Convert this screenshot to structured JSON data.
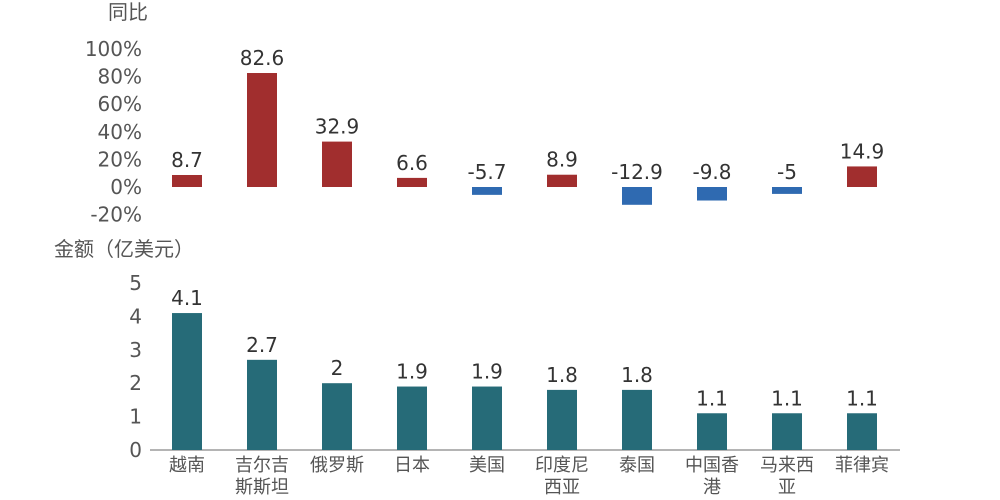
{
  "chart_data": {
    "type": "bar",
    "categories": [
      [
        "越南"
      ],
      [
        "吉尔吉",
        "斯斯坦"
      ],
      [
        "俄罗斯"
      ],
      [
        "日本"
      ],
      [
        "美国"
      ],
      [
        "印度尼",
        "西亚"
      ],
      [
        "泰国"
      ],
      [
        "中国香",
        "港"
      ],
      [
        "马来西",
        "亚"
      ],
      [
        "菲律宾"
      ]
    ],
    "charts": [
      {
        "name": "yoy",
        "ylabel": "同比",
        "ylim": [
          -20,
          100
        ],
        "ticks": [
          -20,
          0,
          20,
          40,
          60,
          80,
          100
        ],
        "tick_labels": [
          "-20%",
          "0%",
          "20%",
          "40%",
          "60%",
          "80%",
          "100%"
        ],
        "values": [
          8.7,
          82.6,
          32.9,
          6.6,
          -5.7,
          8.9,
          -12.9,
          -9.8,
          -5,
          14.9
        ],
        "value_labels": [
          "8.7",
          "82.6",
          "32.9",
          "6.6",
          "-5.7",
          "8.9",
          "-12.9",
          "-9.8",
          "-5",
          "14.9"
        ],
        "colors": {
          "positive": "#A12E2E",
          "negative": "#2F6AB1"
        }
      },
      {
        "name": "amount",
        "ylabel": "金额（亿美元）",
        "ylim": [
          0,
          5
        ],
        "ticks": [
          0,
          1,
          2,
          3,
          4,
          5
        ],
        "tick_labels": [
          "0",
          "1",
          "2",
          "3",
          "4",
          "5"
        ],
        "values": [
          4.1,
          2.7,
          2,
          1.9,
          1.9,
          1.8,
          1.8,
          1.1,
          1.1,
          1.1
        ],
        "value_labels": [
          "4.1",
          "2.7",
          "2",
          "1.9",
          "1.9",
          "1.8",
          "1.8",
          "1.1",
          "1.1",
          "1.1"
        ],
        "colors": {
          "bar": "#266B78"
        }
      }
    ]
  }
}
